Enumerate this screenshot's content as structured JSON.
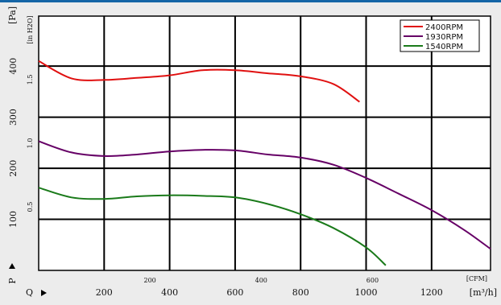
{
  "chart_data": {
    "type": "line",
    "series": [
      {
        "name": "2400RPM",
        "color": "#e01010",
        "x": [
          0,
          100,
          200,
          300,
          400,
          500,
          600,
          700,
          800,
          900,
          980
        ],
        "y": [
          410,
          376,
          373,
          377,
          382,
          392,
          392,
          386,
          380,
          365,
          330
        ]
      },
      {
        "name": "1930RPM",
        "color": "#660066",
        "x": [
          0,
          100,
          200,
          300,
          400,
          500,
          600,
          700,
          800,
          900,
          1000,
          1100,
          1200,
          1300,
          1380
        ],
        "y": [
          253,
          231,
          224,
          227,
          233,
          236,
          235,
          227,
          221,
          207,
          181,
          150,
          118,
          79,
          42
        ]
      },
      {
        "name": "1540RPM",
        "color": "#1a7a1a",
        "x": [
          0,
          100,
          200,
          300,
          400,
          500,
          600,
          700,
          800,
          900,
          1000,
          1060
        ],
        "y": [
          162,
          143,
          140,
          145,
          147,
          146,
          143,
          130,
          110,
          83,
          45,
          10
        ]
      }
    ],
    "x_axis": {
      "min": 0,
      "max": 1380,
      "unit": "[m³/h]",
      "ticks": [
        200,
        400,
        600,
        800,
        1000,
        1200
      ],
      "tick_labels": [
        "200",
        "400",
        "600",
        "800",
        "1000",
        "1200"
      ],
      "marker": "Q"
    },
    "x2_axis": {
      "unit": "[CFM]",
      "ticks": [
        200,
        400,
        600
      ],
      "tick_labels": [
        "200",
        "400",
        "600"
      ]
    },
    "y_axis": {
      "min": 0,
      "max": 498,
      "unit": "[Pa]",
      "ticks": [
        100,
        200,
        300,
        400
      ],
      "tick_labels": [
        "100",
        "200",
        "300",
        "400"
      ],
      "marker": "P"
    },
    "y2_axis": {
      "unit": "[in H2O]",
      "ticks": [
        0.5,
        1.0,
        1.5
      ],
      "tick_labels": [
        "0.5",
        "1.0",
        "1.5"
      ]
    },
    "grid": true,
    "legend_position": "top-right",
    "colors": {
      "background": "#ececec",
      "plot_background": "#ffffff",
      "top_bar": "#1565a6",
      "grid": "#000000"
    }
  }
}
